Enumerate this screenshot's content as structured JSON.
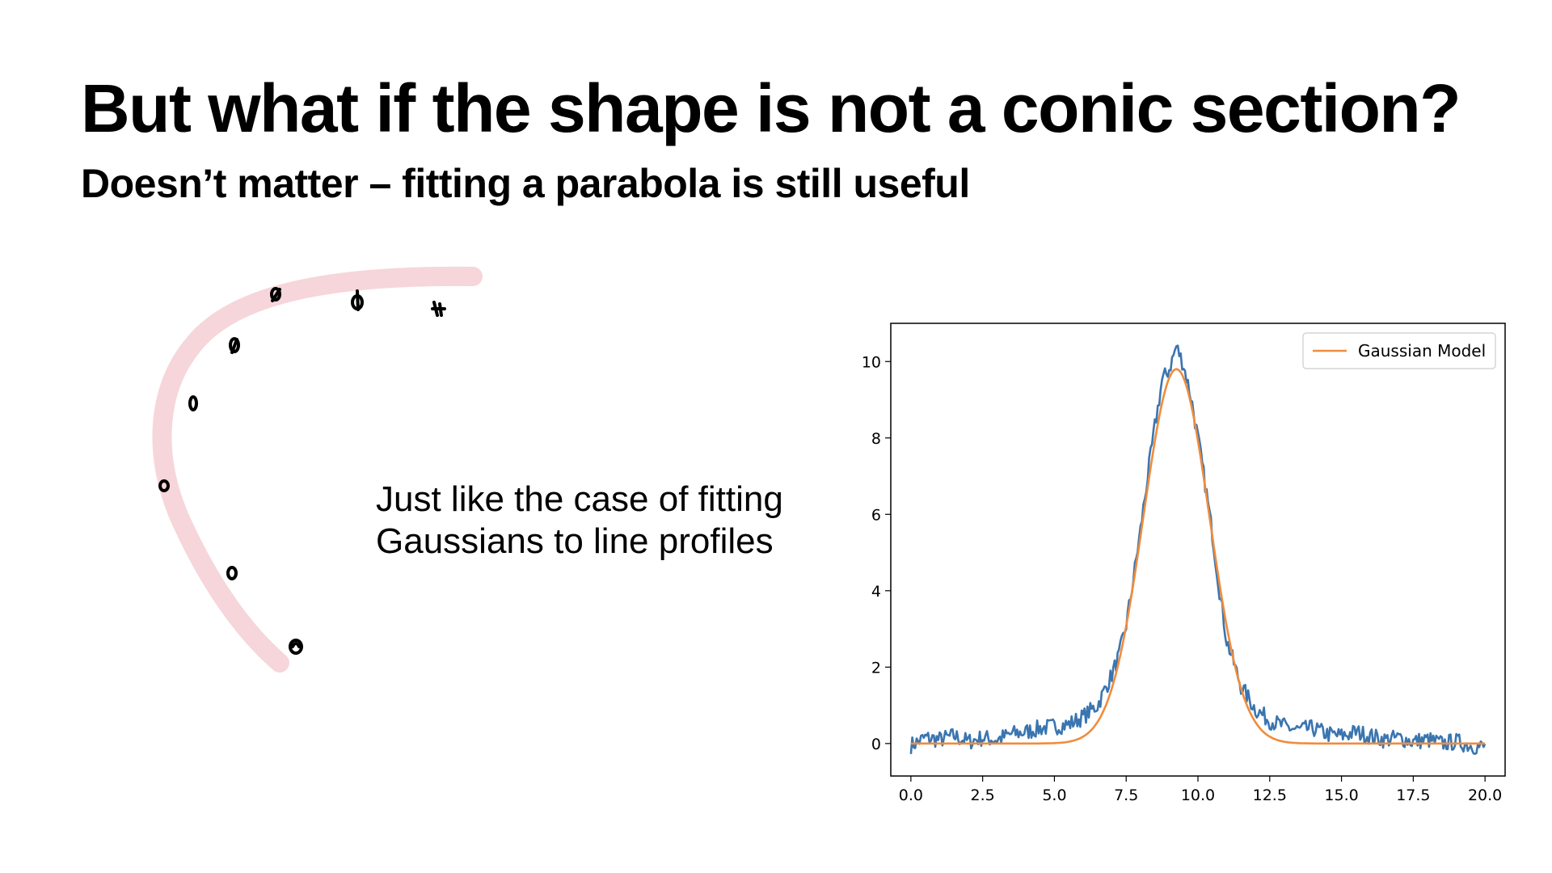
{
  "slide": {
    "title": "But what if the shape is not a conic section?",
    "subtitle": "Doesn’t matter – fitting a parabola is still useful",
    "body_lines": [
      "Just like the case of fitting",
      "Gaussians to line profiles"
    ]
  },
  "sketch": {
    "stroke_color": "#f6d6da",
    "marker_color": "#000000"
  },
  "chart_data": {
    "type": "line",
    "title": "",
    "xlabel": "",
    "ylabel": "",
    "xlim": [
      -0.7,
      20.7
    ],
    "ylim": [
      -0.85,
      11.0
    ],
    "xticks": [
      0.0,
      2.5,
      5.0,
      7.5,
      10.0,
      12.5,
      15.0,
      17.5,
      20.0
    ],
    "yticks": [
      0,
      2,
      4,
      6,
      8,
      10
    ],
    "legend_position": "top-right",
    "grid": false,
    "series": [
      {
        "name": "",
        "color": "#3a75b0",
        "style": "noisy data",
        "x": [
          0.0,
          0.5,
          1.0,
          1.5,
          2.0,
          2.5,
          3.0,
          3.5,
          4.0,
          4.5,
          5.0,
          5.5,
          6.0,
          6.5,
          7.0,
          7.25,
          7.5,
          7.75,
          8.0,
          8.25,
          8.5,
          8.75,
          9.0,
          9.25,
          9.5,
          9.75,
          10.0,
          10.25,
          10.5,
          10.75,
          11.0,
          11.5,
          12.0,
          12.5,
          13.0,
          13.5,
          14.0,
          14.5,
          15.0,
          15.5,
          16.0,
          16.5,
          17.0,
          17.5,
          18.0,
          18.5,
          19.0,
          19.5,
          20.0
        ],
        "y": [
          -0.05,
          0.15,
          0.1,
          0.2,
          0.05,
          0.15,
          0.1,
          0.25,
          0.3,
          0.4,
          0.45,
          0.5,
          0.7,
          1.0,
          1.8,
          2.3,
          3.1,
          4.3,
          5.6,
          7.0,
          8.3,
          9.5,
          9.8,
          10.4,
          9.9,
          9.1,
          8.0,
          6.8,
          5.5,
          4.0,
          2.7,
          1.5,
          0.9,
          0.6,
          0.45,
          0.35,
          0.4,
          0.25,
          0.2,
          0.3,
          0.2,
          0.1,
          0.15,
          0.05,
          0.1,
          0.0,
          0.05,
          -0.05,
          -0.1
        ]
      },
      {
        "name": "Gaussian Model",
        "color": "#f08c3c",
        "style": "gaussian fit",
        "amplitude": 9.8,
        "mean": 9.25,
        "sigma": 1.15,
        "offset": 0.0
      }
    ]
  }
}
